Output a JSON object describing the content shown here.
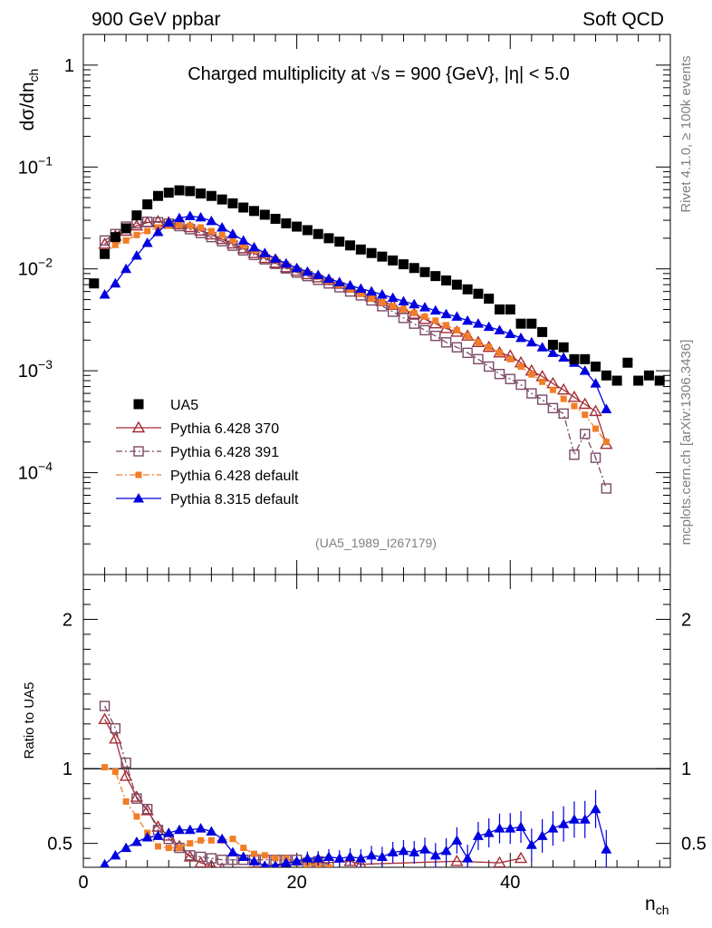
{
  "header": {
    "left": "900 GeV ppbar",
    "right": "Soft QCD"
  },
  "side_text": {
    "rivet": "Rivet 4.1.0, ≥ 100k events",
    "mcplots": "mcplots.cern.ch [arXiv:1306.3436]"
  },
  "chart_data": {
    "type": "scatter",
    "title": "Charged multiplicity at √s = 900 {GeV}, |η| < 5.0",
    "analysis_id": "(UA5_1989_I267179)",
    "xlabel": "n",
    "xlabel_sub": "ch",
    "xlim": [
      0,
      55
    ],
    "x_ticks": [
      0,
      20,
      40
    ],
    "main": {
      "ylabel": "dσ/dn",
      "ylabel_sub": "ch",
      "yscale": "log",
      "ylim": [
        1e-05,
        2
      ],
      "y_tick_labels": [
        {
          "value": 1,
          "base": "1",
          "exp": ""
        },
        {
          "value": 0.1,
          "base": "10",
          "exp": "−1"
        },
        {
          "value": 0.01,
          "base": "10",
          "exp": "−2"
        },
        {
          "value": 0.001,
          "base": "10",
          "exp": "−3"
        },
        {
          "value": 0.0001,
          "base": "10",
          "exp": "−4"
        }
      ],
      "series": [
        {
          "name": "UA5",
          "color": "#000000",
          "marker": "square-filled",
          "line": "none",
          "x": [
            1,
            2,
            3,
            4,
            5,
            6,
            7,
            8,
            9,
            10,
            11,
            12,
            13,
            14,
            15,
            16,
            17,
            18,
            19,
            20,
            21,
            22,
            23,
            24,
            25,
            26,
            27,
            28,
            29,
            30,
            31,
            32,
            33,
            34,
            35,
            36,
            37,
            38,
            39,
            40,
            41,
            42,
            43,
            44,
            45,
            46,
            47,
            48,
            49,
            50,
            51,
            52,
            53,
            54
          ],
          "y": [
            0.0072,
            0.014,
            0.0205,
            0.025,
            0.0335,
            0.043,
            0.052,
            0.056,
            0.059,
            0.058,
            0.055,
            0.052,
            0.048,
            0.044,
            0.04,
            0.037,
            0.034,
            0.031,
            0.028,
            0.026,
            0.024,
            0.022,
            0.02,
            0.0185,
            0.017,
            0.0155,
            0.0143,
            0.0132,
            0.0121,
            0.0111,
            0.0102,
            0.0093,
            0.0085,
            0.0077,
            0.007,
            0.0063,
            0.0057,
            0.0051,
            0.004,
            0.004,
            0.0029,
            0.0029,
            0.0024,
            0.0018,
            0.0017,
            0.0013,
            0.0013,
            0.0011,
            0.0009,
            0.0008,
            0.0012,
            0.0008,
            0.0009,
            0.0008
          ]
        },
        {
          "name": "Pythia 6.428 370",
          "color": "#a42c34",
          "marker": "triangle-open",
          "line": "solid",
          "x": [
            2,
            3,
            4,
            5,
            6,
            7,
            8,
            9,
            10,
            11,
            12,
            13,
            14,
            15,
            16,
            17,
            18,
            19,
            20,
            21,
            22,
            23,
            24,
            25,
            26,
            27,
            28,
            29,
            30,
            31,
            32,
            33,
            34,
            35,
            36,
            37,
            38,
            39,
            40,
            41,
            42,
            43,
            44,
            45,
            46,
            47,
            48,
            49
          ],
          "y": [
            0.0175,
            0.021,
            0.0235,
            0.0265,
            0.0285,
            0.0292,
            0.0285,
            0.0272,
            0.0255,
            0.0236,
            0.0216,
            0.0195,
            0.0176,
            0.0158,
            0.0142,
            0.0127,
            0.0114,
            0.0103,
            0.0095,
            0.0088,
            0.0082,
            0.0077,
            0.0071,
            0.0065,
            0.0059,
            0.0053,
            0.0048,
            0.0044,
            0.004,
            0.0036,
            0.0032,
            0.0029,
            0.0026,
            0.0024,
            0.0022,
            0.0019,
            0.0017,
            0.0015,
            0.0014,
            0.0012,
            0.001,
            0.00088,
            0.00075,
            0.00065,
            0.00055,
            0.00047,
            0.0004,
            0.00019
          ]
        },
        {
          "name": "Pythia 6.428 391",
          "color": "#7a4a66",
          "marker": "square-open",
          "line": "dashdot",
          "x": [
            2,
            3,
            4,
            5,
            6,
            7,
            8,
            9,
            10,
            11,
            12,
            13,
            14,
            15,
            16,
            17,
            18,
            19,
            20,
            21,
            22,
            23,
            24,
            25,
            26,
            27,
            28,
            29,
            30,
            31,
            32,
            33,
            34,
            35,
            36,
            37,
            38,
            39,
            40,
            41,
            42,
            43,
            44,
            45,
            46,
            47,
            48,
            49
          ],
          "y": [
            0.019,
            0.022,
            0.026,
            0.028,
            0.029,
            0.0287,
            0.0278,
            0.0263,
            0.0245,
            0.0225,
            0.0205,
            0.0187,
            0.0169,
            0.0152,
            0.0137,
            0.0124,
            0.0112,
            0.0101,
            0.0092,
            0.0085,
            0.0078,
            0.0072,
            0.0066,
            0.006,
            0.0055,
            0.0049,
            0.0043,
            0.0038,
            0.0033,
            0.0029,
            0.0025,
            0.0022,
            0.0019,
            0.0017,
            0.0015,
            0.0013,
            0.0011,
            0.00093,
            0.00083,
            0.00073,
            0.0006,
            0.00052,
            0.00043,
            0.00038,
            0.00015,
            0.00024,
            0.00014,
            7e-05
          ]
        },
        {
          "name": "Pythia 6.428 default",
          "color": "#f27d27",
          "marker": "square-filled-small",
          "line": "dashdot",
          "x": [
            2,
            3,
            4,
            5,
            6,
            7,
            8,
            9,
            10,
            11,
            12,
            13,
            14,
            15,
            16,
            17,
            18,
            19,
            20,
            21,
            22,
            23,
            24,
            25,
            26,
            27,
            28,
            29,
            30,
            31,
            32,
            33,
            34,
            35,
            36,
            37,
            38,
            39,
            40,
            41,
            42,
            43,
            44,
            45,
            46,
            47,
            48,
            49
          ],
          "y": [
            0.014,
            0.0172,
            0.019,
            0.0215,
            0.0235,
            0.0255,
            0.0265,
            0.027,
            0.0265,
            0.0255,
            0.0235,
            0.0215,
            0.0192,
            0.0172,
            0.0154,
            0.0138,
            0.0124,
            0.0111,
            0.01,
            0.0092,
            0.0084,
            0.0077,
            0.007,
            0.0063,
            0.0057,
            0.0051,
            0.0047,
            0.0043,
            0.004,
            0.0037,
            0.0034,
            0.0031,
            0.0028,
            0.0025,
            0.0022,
            0.0019,
            0.0017,
            0.0015,
            0.0013,
            0.0011,
            0.00092,
            0.00078,
            0.00065,
            0.00053,
            0.00045,
            0.00037,
            0.00027,
            0.0002
          ]
        },
        {
          "name": "Pythia 8.315 default",
          "color": "#0000e0",
          "marker": "triangle-filled",
          "line": "solid",
          "x": [
            2,
            3,
            4,
            5,
            6,
            7,
            8,
            9,
            10,
            11,
            12,
            13,
            14,
            15,
            16,
            17,
            18,
            19,
            20,
            21,
            22,
            23,
            24,
            25,
            26,
            27,
            28,
            29,
            30,
            31,
            32,
            33,
            34,
            35,
            36,
            37,
            38,
            39,
            40,
            41,
            42,
            43,
            44,
            45,
            46,
            47,
            48,
            49
          ],
          "y": [
            0.0056,
            0.0072,
            0.01,
            0.0135,
            0.018,
            0.023,
            0.0285,
            0.0315,
            0.033,
            0.032,
            0.0295,
            0.0255,
            0.022,
            0.019,
            0.0163,
            0.0143,
            0.0126,
            0.0113,
            0.0102,
            0.0094,
            0.0087,
            0.008,
            0.0074,
            0.0069,
            0.0064,
            0.006,
            0.0056,
            0.0052,
            0.0048,
            0.0045,
            0.0042,
            0.0039,
            0.0036,
            0.0034,
            0.0031,
            0.0029,
            0.0027,
            0.0025,
            0.0023,
            0.0021,
            0.0019,
            0.0017,
            0.0015,
            0.00135,
            0.0012,
            0.001,
            0.00075,
            0.00042
          ]
        }
      ]
    },
    "ratio": {
      "ylabel": "Ratio to UA5",
      "ylim": [
        0.34,
        2.3
      ],
      "y_ticks": [
        0.5,
        1,
        2
      ],
      "y_tick_labels": [
        "0.5",
        "1",
        "2"
      ],
      "reference_line": 1,
      "series": [
        {
          "name": "Pythia 6.428 370",
          "x": [
            2,
            3,
            4,
            5,
            6,
            7,
            8,
            9,
            10,
            11,
            12,
            13,
            25,
            26,
            35,
            39,
            41
          ],
          "y": [
            1.33,
            1.2,
            0.95,
            0.81,
            0.72,
            0.61,
            0.55,
            0.48,
            0.41,
            0.37,
            0.35,
            0.33,
            0.38,
            0.36,
            0.38,
            0.37,
            0.4
          ]
        },
        {
          "name": "Pythia 6.428 391",
          "x": [
            2,
            3,
            4,
            5,
            6,
            7,
            8,
            9,
            10,
            11,
            12,
            13,
            14,
            15,
            16,
            17,
            18,
            19,
            20,
            21,
            22,
            23
          ],
          "y": [
            1.42,
            1.27,
            1.04,
            0.8,
            0.73,
            0.59,
            0.53,
            0.47,
            0.42,
            0.41,
            0.4,
            0.39,
            0.39,
            0.39,
            0.39,
            0.39,
            0.39,
            0.39,
            0.39,
            0.37,
            0.38,
            0.36
          ]
        },
        {
          "name": "Pythia 6.428 default",
          "x": [
            2,
            3,
            4,
            5,
            6,
            7,
            8,
            9,
            10,
            11,
            12,
            13,
            14,
            15,
            16,
            17,
            18,
            19,
            20,
            21,
            22,
            23
          ],
          "y": [
            1.01,
            0.98,
            0.78,
            0.68,
            0.57,
            0.48,
            0.47,
            0.47,
            0.5,
            0.52,
            0.52,
            0.52,
            0.53,
            0.47,
            0.43,
            0.42,
            0.4,
            0.4,
            0.37,
            0.36,
            0.36,
            0.34
          ]
        },
        {
          "name": "Pythia 8.315 default",
          "x": [
            2,
            3,
            4,
            5,
            6,
            7,
            8,
            9,
            10,
            11,
            12,
            13,
            14,
            15,
            16,
            17,
            18,
            19,
            20,
            21,
            22,
            23,
            24,
            25,
            26,
            27,
            28,
            29,
            30,
            31,
            32,
            33,
            34,
            35,
            36,
            37,
            38,
            39,
            40,
            41,
            42,
            43,
            44,
            45,
            46,
            47,
            48,
            49
          ],
          "y": [
            0.36,
            0.42,
            0.47,
            0.51,
            0.54,
            0.55,
            0.57,
            0.59,
            0.59,
            0.6,
            0.58,
            0.53,
            0.44,
            0.41,
            0.38,
            0.35,
            0.35,
            0.37,
            0.38,
            0.4,
            0.4,
            0.41,
            0.4,
            0.41,
            0.4,
            0.42,
            0.41,
            0.44,
            0.45,
            0.44,
            0.46,
            0.42,
            0.45,
            0.52,
            0.4,
            0.55,
            0.57,
            0.6,
            0.6,
            0.61,
            0.49,
            0.55,
            0.6,
            0.63,
            0.66,
            0.66,
            0.73,
            0.46
          ]
        }
      ]
    }
  }
}
